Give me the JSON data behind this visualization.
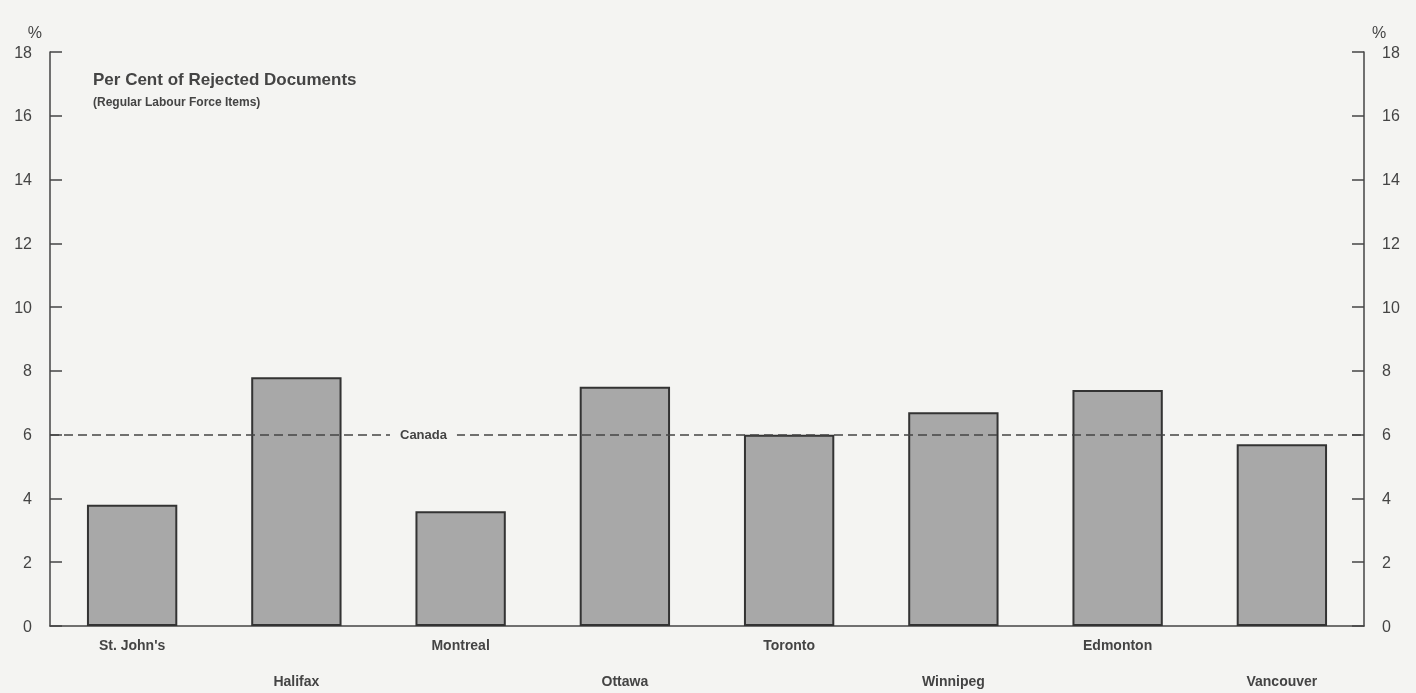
{
  "chart_data": {
    "type": "bar",
    "title": "Per Cent of Rejected Documents",
    "subtitle": "(Regular Labour Force Items)",
    "ylabel": "%",
    "y2label": "%",
    "categories": [
      "St. John's",
      "Halifax",
      "Montreal",
      "Ottawa",
      "Toronto",
      "Winnipeg",
      "Edmonton",
      "Vancouver"
    ],
    "values": [
      3.8,
      7.8,
      3.6,
      7.5,
      6.0,
      6.7,
      7.4,
      5.7
    ],
    "color": "#a8a8a8",
    "ylim": [
      0,
      18
    ],
    "yticks": [
      0,
      2,
      4,
      6,
      8,
      10,
      12,
      14,
      16,
      18
    ],
    "y2lim": [
      0,
      18
    ],
    "y2ticks": [
      0,
      2,
      4,
      6,
      8,
      10,
      12,
      14,
      16,
      18
    ],
    "ref_lines": [
      {
        "axis": "y",
        "value": 6,
        "label": "Canada",
        "line_style": "dashed",
        "color": "#444444"
      }
    ],
    "grid": false
  }
}
